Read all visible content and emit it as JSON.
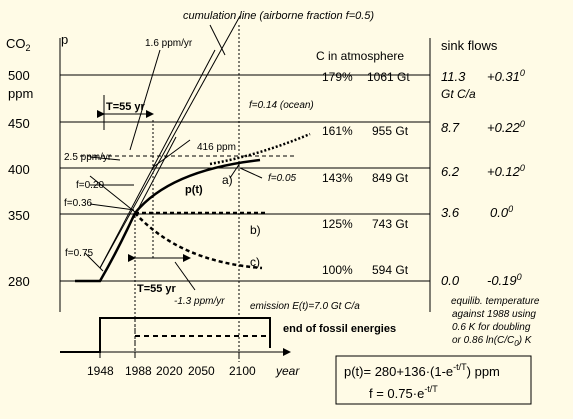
{
  "left_axis": {
    "co2_label": "CO",
    "co2_sub": "2",
    "p_label": "p",
    "ppm_label": "ppm",
    "ticks": [
      "500",
      "450",
      "400",
      "350",
      "280"
    ]
  },
  "atmosphere": {
    "header": "C in atmosphere",
    "rows": [
      {
        "pct": "179%",
        "gt": "1061 Gt"
      },
      {
        "pct": "161%",
        "gt": "955 Gt"
      },
      {
        "pct": "143%",
        "gt": "849 Gt"
      },
      {
        "pct": "125%",
        "gt": "743 Gt"
      },
      {
        "pct": "100%",
        "gt": "594 Gt"
      }
    ]
  },
  "sinks": {
    "header": "sink flows",
    "unit": "Gt C/a",
    "rows": [
      {
        "flow": "11.3",
        "temp": "+0.31",
        "sup": "0"
      },
      {
        "flow": "8.7",
        "temp": "+0.22",
        "sup": "0"
      },
      {
        "flow": "6.2",
        "temp": "+0.12",
        "sup": "0"
      },
      {
        "flow": "3.6",
        "temp": "0.0",
        "sup": "0"
      },
      {
        "flow": "0.0",
        "temp": "-0.19",
        "sup": "0"
      }
    ]
  },
  "annotations": {
    "cumulation": "cumulation line (airborne fraction f=0.5)",
    "rate_16": "1.6 ppm/yr",
    "rate_25": "2.5 ppm/yr",
    "rate_13": "-1.3 ppm/yr",
    "T55_top": "T=55 yr",
    "T55_bottom": "T=55 yr",
    "f014": "f=0.14 (ocean)",
    "ppm416": "416 ppm",
    "f020": "f=0.20",
    "f036": "f=0.36",
    "f075": "f=0.75",
    "f005": "f=0.05",
    "pt": "p(t)",
    "a": "a)",
    "b": "b)",
    "c": "c)",
    "emission": "emission E(t)=7.0 Gt C/a",
    "end_fossil": "end of fossil energies",
    "equil_1": "equilib. temperature",
    "equil_2": "against 1988 using",
    "equil_3": "0.6 K for doubling",
    "equil_4": "or 0.86 ln(C/C",
    "equil_4b": "0",
    "equil_4c": ") K"
  },
  "x_axis": {
    "ticks": [
      "1948",
      "1988",
      "2020",
      "2050",
      "2100"
    ],
    "label": "year"
  },
  "formula": {
    "line1_a": "p(t)= 280+136",
    "line1_b": "(1-e",
    "line1_sup": "-t/T",
    "line1_c": ") ppm",
    "line2_a": "f = 0.75",
    "line2_b": "e",
    "line2_sup": "-t/T"
  }
}
